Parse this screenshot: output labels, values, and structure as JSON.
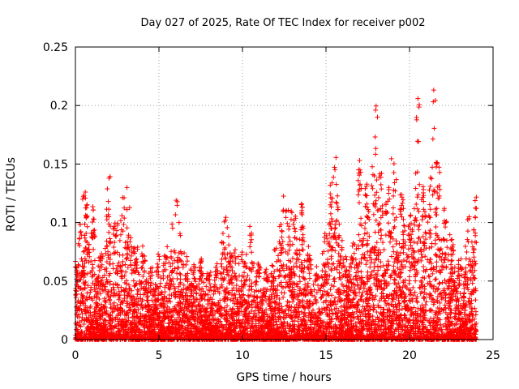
{
  "chart_data": {
    "type": "scatter",
    "title": "Day 027 of 2025, Rate Of TEC Index for receiver p002",
    "xlabel": "GPS time / hours",
    "ylabel": "ROTI / TECUs",
    "xlim": [
      0,
      25
    ],
    "ylim": [
      0,
      0.25
    ],
    "x_ticks": [
      "0",
      "5",
      "10",
      "15",
      "20",
      "25"
    ],
    "y_ticks": [
      "0",
      "0.05",
      "0.1",
      "0.15",
      "0.2",
      "0.25"
    ],
    "grid": true,
    "marker": "+",
    "color": "#ff0000",
    "note_points": "dense scatter, one point every ~30 s per satellite; representative peak envelope per half hour listed here",
    "envelope": {
      "x": [
        0.0,
        0.5,
        1.0,
        1.5,
        2.0,
        2.5,
        3.0,
        3.5,
        4.0,
        4.5,
        5.0,
        5.5,
        6.0,
        6.5,
        7.0,
        7.5,
        8.0,
        8.5,
        9.0,
        9.5,
        10.0,
        10.5,
        11.0,
        11.5,
        12.0,
        12.5,
        13.0,
        13.5,
        14.0,
        14.5,
        15.0,
        15.5,
        16.0,
        16.5,
        17.0,
        17.5,
        18.0,
        18.5,
        19.0,
        19.5,
        20.0,
        20.5,
        21.0,
        21.5,
        22.0,
        22.5,
        23.0,
        23.5,
        24.0
      ],
      "y": [
        0.07,
        0.135,
        0.115,
        0.07,
        0.14,
        0.1,
        0.135,
        0.09,
        0.08,
        0.065,
        0.075,
        0.08,
        0.12,
        0.075,
        0.07,
        0.07,
        0.06,
        0.065,
        0.105,
        0.08,
        0.075,
        0.1,
        0.065,
        0.06,
        0.08,
        0.125,
        0.11,
        0.12,
        0.08,
        0.06,
        0.1,
        0.165,
        0.09,
        0.07,
        0.165,
        0.13,
        0.2,
        0.13,
        0.155,
        0.13,
        0.1,
        0.21,
        0.11,
        0.215,
        0.12,
        0.09,
        0.07,
        0.105,
        0.125
      ]
    }
  }
}
